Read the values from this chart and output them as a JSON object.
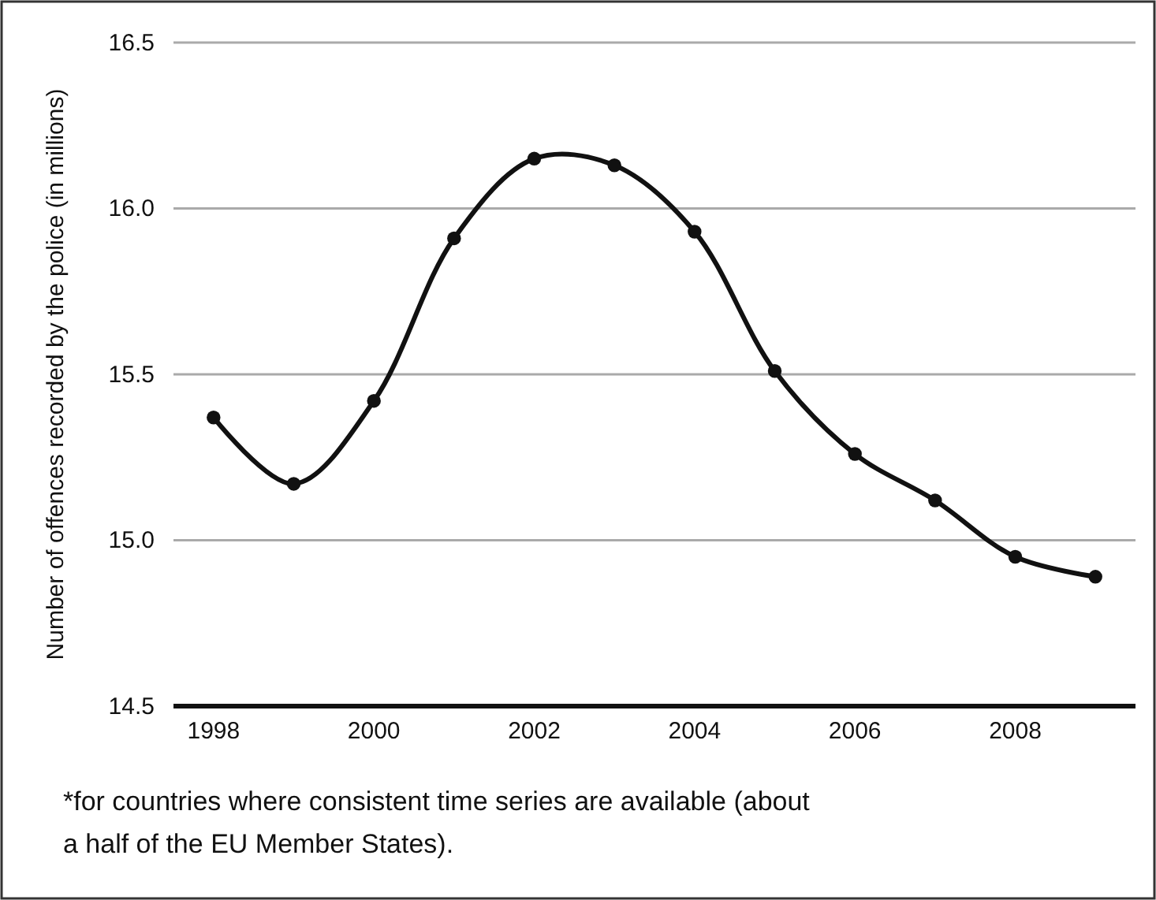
{
  "chart_data": {
    "type": "line",
    "ylabel": "Number of offences recorded by the police (in millions)",
    "x": [
      1998,
      1999,
      2000,
      2001,
      2002,
      2003,
      2004,
      2005,
      2006,
      2007,
      2008,
      2009
    ],
    "series": [
      {
        "color": "#111111",
        "values": [
          15.37,
          15.17,
          15.42,
          15.91,
          16.15,
          16.13,
          15.93,
          15.51,
          15.26,
          15.12,
          14.95,
          14.89
        ]
      }
    ],
    "xlim": [
      1997.5,
      2009.5
    ],
    "xticks": [
      1998,
      2000,
      2002,
      2004,
      2006,
      2008
    ],
    "ylim": [
      14.5,
      16.5
    ],
    "yticks": [
      {
        "value": 14.5,
        "label": "14.5"
      },
      {
        "value": 15,
        "label": "15.0"
      },
      {
        "value": 15.5,
        "label": "15.5"
      },
      {
        "value": 16,
        "label": "16.0"
      },
      {
        "value": 16.5,
        "label": "16.5"
      }
    ],
    "grid": "y",
    "marker": "circle",
    "line_style": "solid",
    "annotations": [
      "*for countries where consistent time series are available (about a half of the EU Member States)."
    ]
  }
}
